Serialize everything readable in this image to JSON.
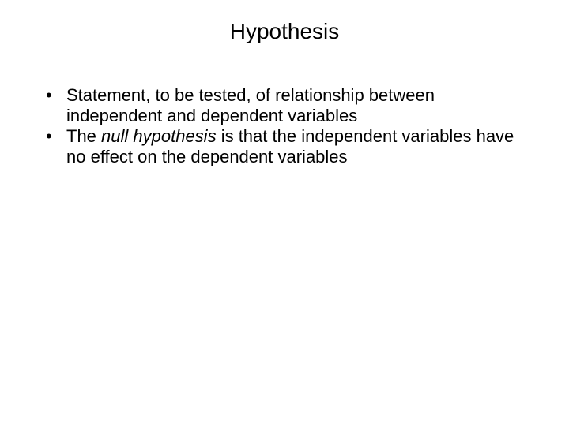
{
  "slide": {
    "title": "Hypothesis",
    "bullets": [
      {
        "segments": [
          {
            "text": "Statement, to be tested, of relationship between independent and dependent variables",
            "italic": false
          }
        ]
      },
      {
        "segments": [
          {
            "text": "The ",
            "italic": false
          },
          {
            "text": "null hypothesis",
            "italic": true
          },
          {
            "text": " is that the independent variables have no effect on the dependent variables",
            "italic": false
          }
        ]
      }
    ]
  },
  "style": {
    "background_color": "#ffffff",
    "text_color": "#000000",
    "title_fontsize": 28,
    "body_fontsize": 22,
    "font_family": "Arial, Helvetica, sans-serif"
  }
}
